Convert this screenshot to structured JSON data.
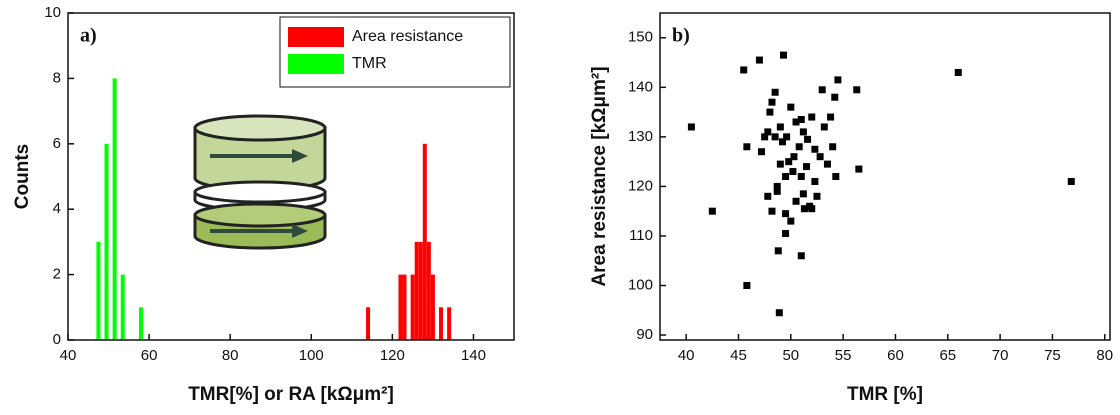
{
  "chart_data": [
    {
      "type": "bar",
      "annotation": "a)",
      "xlabel": "TMR[%] or RA [kΩμm²]",
      "ylabel": "Counts",
      "xlim": [
        40,
        150
      ],
      "xticks": [
        40,
        60,
        80,
        100,
        120,
        140
      ],
      "ylim": [
        0,
        10
      ],
      "yticks": [
        0,
        2,
        4,
        6,
        8,
        10
      ],
      "legend": "upper right",
      "series": [
        {
          "name": "Area resistance",
          "color": "#ff0000",
          "x": [
            114,
            122,
            123,
            125,
            126,
            127,
            128,
            129,
            130,
            132,
            134
          ],
          "values": [
            1,
            2,
            2,
            2,
            3,
            3,
            6,
            3,
            2,
            1,
            1
          ]
        },
        {
          "name": "TMR",
          "color": "#00ff00",
          "x": [
            47.5,
            49.5,
            51.5,
            53.5,
            58
          ],
          "values": [
            3,
            6,
            8,
            2,
            1
          ]
        }
      ]
    },
    {
      "type": "scatter",
      "annotation": "b)",
      "xlabel": "TMR [%]",
      "ylabel": "Area resistance [kΩμm²]",
      "xlim": [
        37.5,
        80.5
      ],
      "xticks": [
        40,
        45,
        50,
        55,
        60,
        65,
        70,
        75,
        80
      ],
      "ylim": [
        89,
        155
      ],
      "yticks": [
        90,
        100,
        110,
        120,
        130,
        140,
        150
      ],
      "series": [
        {
          "color": "#000000",
          "x": [
            40.5,
            42.5,
            45.5,
            45.8,
            45.8,
            47,
            47.2,
            47.5,
            47.8,
            47.8,
            48,
            48.2,
            48.2,
            48.5,
            48.5,
            48.7,
            48.7,
            48.8,
            48.9,
            49,
            49,
            49.2,
            49.3,
            49.5,
            49.5,
            49.5,
            49.6,
            49.8,
            50,
            50,
            50.2,
            50.3,
            50.5,
            50.5,
            50.8,
            51,
            51,
            51,
            51.2,
            51.2,
            51.3,
            51.5,
            51.6,
            51.8,
            52,
            52,
            52.3,
            52.3,
            52.5,
            52.8,
            53,
            53.2,
            53.5,
            53.8,
            54,
            54.2,
            54.3,
            54.5,
            56.3,
            56.5,
            66,
            76.8
          ],
          "values": [
            132,
            115,
            143.5,
            100,
            128,
            145.5,
            127,
            130,
            118,
            131,
            135,
            137,
            115,
            139,
            130,
            120,
            119,
            107,
            94.5,
            132,
            124.5,
            129,
            146.5,
            114.5,
            110.5,
            122,
            130,
            125,
            113,
            136,
            123,
            126,
            133,
            117,
            128,
            106,
            122,
            133.5,
            131,
            118.5,
            115.5,
            124,
            129.5,
            116,
            134,
            115.5,
            121,
            127.5,
            118,
            126,
            139.5,
            132,
            124.5,
            134,
            128,
            138,
            122,
            141.5,
            139.5,
            123.5,
            143,
            121
          ]
        }
      ]
    }
  ]
}
